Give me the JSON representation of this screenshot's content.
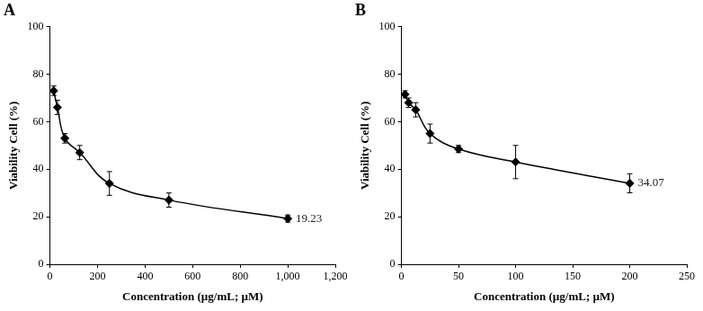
{
  "chart_data": [
    {
      "type": "line",
      "title": "A",
      "x_label": "Concentration (µg/mL; µM)",
      "y_label": "Viability Cell (%)",
      "x": [
        15.6,
        31.25,
        62.5,
        125,
        250,
        500,
        1000
      ],
      "series": [
        {
          "color": "#000000",
          "marker": "diamond",
          "values": [
            73,
            66,
            53,
            47,
            34,
            27,
            19.23
          ],
          "errors": [
            2,
            3,
            2,
            3,
            5,
            3,
            1.5
          ]
        }
      ],
      "xlim": [
        0,
        1200
      ],
      "xticks": [
        0,
        200,
        400,
        600,
        800,
        1000,
        1200
      ],
      "ylim": [
        0,
        100
      ],
      "yticks": [
        0,
        20,
        40,
        60,
        80,
        100
      ],
      "grid": false,
      "annotations": [
        {
          "text": "19.23",
          "x": 1000,
          "y": 19.23
        }
      ]
    },
    {
      "type": "line",
      "title": "B",
      "x_label": "Concentration (µg/mL; µM)",
      "y_label": "Viability Cell (%)",
      "x": [
        3.125,
        6.25,
        12.5,
        25,
        50,
        100,
        200
      ],
      "series": [
        {
          "color": "#000000",
          "marker": "diamond",
          "values": [
            71.5,
            68,
            65,
            55,
            48.5,
            43,
            34.07
          ],
          "errors": [
            1.5,
            2,
            3,
            4,
            1.5,
            7,
            4
          ]
        }
      ],
      "xlim": [
        0,
        250
      ],
      "xticks": [
        0,
        50,
        100,
        150,
        200,
        250
      ],
      "ylim": [
        0,
        100
      ],
      "yticks": [
        0,
        20,
        40,
        60,
        80,
        100
      ],
      "grid": false,
      "annotations": [
        {
          "text": "34.07",
          "x": 200,
          "y": 34.07
        }
      ]
    }
  ]
}
